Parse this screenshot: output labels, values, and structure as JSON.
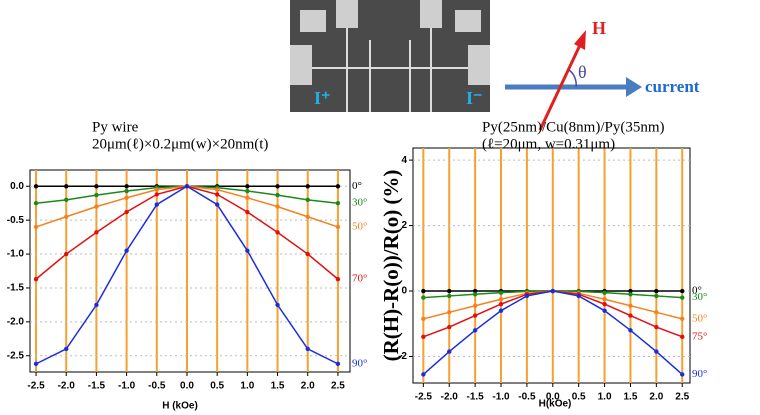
{
  "chart_data": [
    {
      "type": "line",
      "title": "Py wire",
      "subtitle": "20μm(ℓ)×0.2μm(w)×20nm(t)",
      "xlabel": "H (kOe)",
      "x": [
        -2.5,
        -2.0,
        -1.5,
        -1.0,
        -0.5,
        0.0,
        0.5,
        1.0,
        1.5,
        2.0,
        2.5
      ],
      "series": [
        {
          "name": "0°",
          "color": "#000000",
          "values": [
            0,
            0,
            0,
            0,
            0,
            0,
            0,
            0,
            0,
            0,
            0
          ]
        },
        {
          "name": "30°",
          "color": "#1a8a1a",
          "values": [
            -0.25,
            -0.2,
            -0.13,
            -0.07,
            -0.02,
            0,
            -0.02,
            -0.07,
            -0.13,
            -0.2,
            -0.25
          ]
        },
        {
          "name": "50°",
          "color": "#f58220",
          "values": [
            -0.6,
            -0.45,
            -0.3,
            -0.17,
            -0.05,
            0,
            -0.05,
            -0.17,
            -0.3,
            -0.45,
            -0.6
          ]
        },
        {
          "name": "70°",
          "color": "#e01010",
          "values": [
            -1.37,
            -1.0,
            -0.68,
            -0.38,
            -0.12,
            0,
            -0.12,
            -0.38,
            -0.68,
            -1.0,
            -1.37
          ]
        },
        {
          "name": "90°",
          "color": "#1a2ee0",
          "values": [
            -2.62,
            -2.4,
            -1.75,
            -0.95,
            -0.27,
            0,
            -0.27,
            -0.95,
            -1.75,
            -2.4,
            -2.62
          ]
        }
      ],
      "xlim": [
        -2.6,
        2.7
      ],
      "ylim": [
        -2.74,
        0.24
      ],
      "xticks": [
        -2.5,
        {
          "value": -2.0,
          "label": "-2.0"
        },
        -1.5,
        {
          "value": -1.0,
          "label": "-1.0"
        },
        -0.5,
        {
          "value": 0,
          "label": "0.0"
        },
        0.5,
        {
          "value": 1.0,
          "label": "1.0"
        },
        1.5,
        {
          "value": 2.0,
          "label": "2.0"
        },
        2.5
      ],
      "yticks": [
        {
          "value": 0,
          "label": "0.0"
        },
        -0.5,
        {
          "value": -1.0,
          "label": "-1.0"
        },
        -1.5,
        {
          "value": -2.0,
          "label": "-2.0"
        },
        -2.5
      ],
      "grid": true,
      "grid_color": "#f5a030"
    },
    {
      "type": "line",
      "title": "Py(25nm)/Cu(8nm)/Py(35nm)",
      "subtitle": "(ℓ=20μm, w=0.31μm)",
      "xlabel": "H(kOe)",
      "ylabel": "(R(H)-R(o))/R(o)   (%)",
      "x": [
        -2.5,
        -2.0,
        -1.5,
        -1.0,
        -0.5,
        0.0,
        0.5,
        1.0,
        1.5,
        2.0,
        2.5
      ],
      "series": [
        {
          "name": "0°",
          "color": "#000000",
          "values": [
            0,
            0,
            0,
            0,
            0,
            0,
            0,
            0,
            0,
            0,
            0
          ]
        },
        {
          "name": "30°",
          "color": "#1a8a1a",
          "values": [
            -0.2,
            -0.15,
            -0.1,
            -0.05,
            -0.01,
            0,
            -0.01,
            -0.05,
            -0.1,
            -0.15,
            -0.2
          ]
        },
        {
          "name": "50°",
          "color": "#f58220",
          "values": [
            -0.85,
            -0.65,
            -0.45,
            -0.25,
            -0.07,
            0,
            -0.07,
            -0.25,
            -0.45,
            -0.65,
            -0.85
          ]
        },
        {
          "name": "75°",
          "color": "#e01010",
          "values": [
            -1.4,
            -1.1,
            -0.75,
            -0.4,
            -0.1,
            0,
            -0.1,
            -0.4,
            -0.75,
            -1.1,
            -1.4
          ]
        },
        {
          "name": "90°",
          "color": "#1a2ee0",
          "values": [
            -2.55,
            -1.85,
            -1.2,
            -0.6,
            -0.15,
            0,
            -0.15,
            -0.6,
            -1.2,
            -1.85,
            -2.55
          ]
        }
      ],
      "xlim": [
        -2.7,
        2.65
      ],
      "ylim": [
        -2.81,
        4.37
      ],
      "xticks": [
        -2.5,
        {
          "value": -2.0,
          "label": "-2.0"
        },
        -1.5,
        {
          "value": -1.0,
          "label": "-1.0"
        },
        -0.5,
        {
          "value": 0,
          "label": "0.0"
        },
        0.5,
        {
          "value": 1.0,
          "label": "1.0"
        },
        1.5,
        {
          "value": 2.0,
          "label": "2.0"
        },
        2.5
      ],
      "yticks": [
        -2,
        0,
        2,
        4
      ],
      "grid": true,
      "grid_color": "#f5a030"
    }
  ],
  "sem": {
    "left_label": "I⁺",
    "right_label": "I⁻"
  },
  "diagram": {
    "field": "H",
    "angle": "θ",
    "current": "current"
  }
}
